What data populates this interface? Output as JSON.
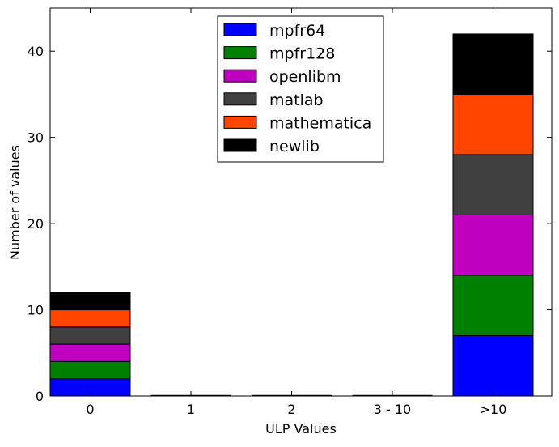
{
  "chart_data": {
    "type": "bar",
    "stacked": true,
    "categories": [
      "0",
      "1",
      "2",
      "3 - 10",
      ">10"
    ],
    "series": [
      {
        "name": "mpfr64",
        "color": "#0000ff",
        "values": [
          2,
          0,
          0,
          0,
          7
        ]
      },
      {
        "name": "mpfr128",
        "color": "#008000",
        "values": [
          2,
          0,
          0,
          0,
          7
        ]
      },
      {
        "name": "openlibm",
        "color": "#bf00bf",
        "values": [
          2,
          0,
          0,
          0,
          7
        ]
      },
      {
        "name": "matlab",
        "color": "#404040",
        "values": [
          2,
          0,
          0,
          0,
          7
        ]
      },
      {
        "name": "mathematica",
        "color": "#ff4500",
        "values": [
          2,
          0,
          0,
          0,
          7
        ]
      },
      {
        "name": "newlib",
        "color": "#000000",
        "values": [
          2,
          0,
          0,
          0,
          7
        ]
      }
    ],
    "title": "",
    "xlabel": "ULP Values",
    "ylabel": "Number of values",
    "ylim": [
      0,
      45
    ],
    "yticks": [
      0,
      10,
      20,
      30,
      40
    ],
    "grid": false,
    "legend_position": "top-center"
  }
}
